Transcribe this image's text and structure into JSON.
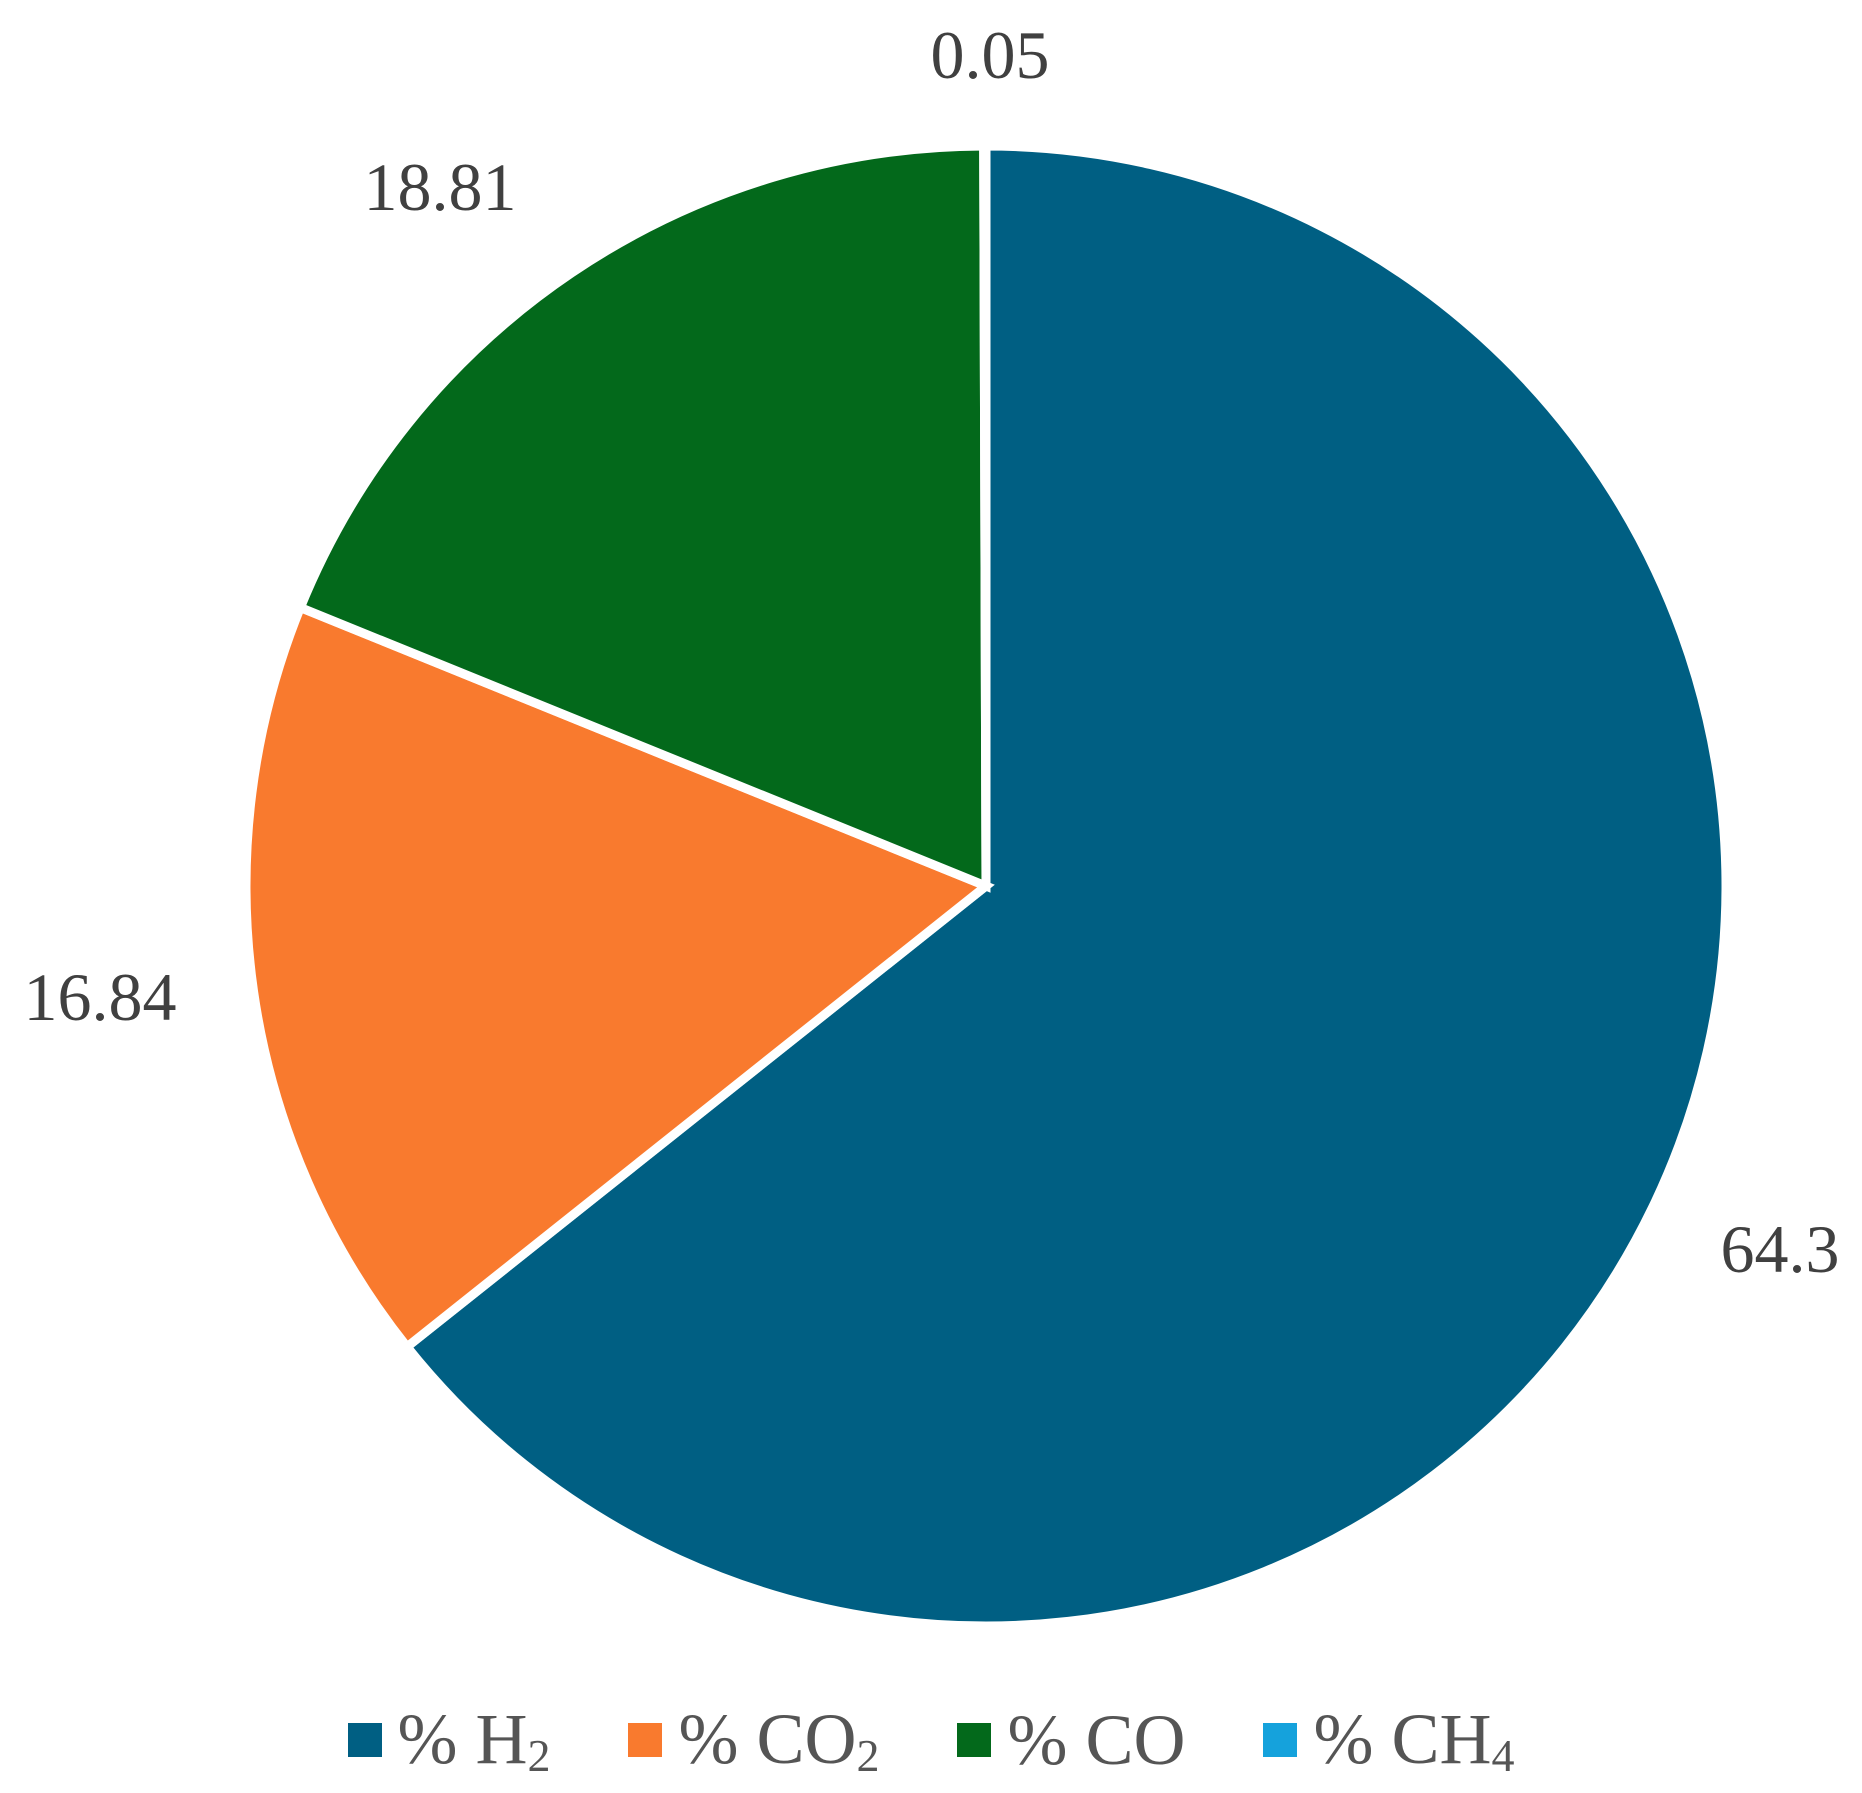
{
  "chart_data": {
    "type": "pie",
    "title": "",
    "series": [
      {
        "values": [
          64.3,
          16.84,
          18.81,
          0.05
        ]
      }
    ],
    "categories": [
      "% H₂",
      "% CO₂",
      "% CO",
      "% CH₄"
    ],
    "slices": [
      {
        "label_prefix": "% H",
        "label_subscript": "2",
        "value": 64.3,
        "color": "#005f83"
      },
      {
        "label_prefix": "% CO",
        "label_subscript": "2",
        "value": 16.84,
        "color": "#f97a2e"
      },
      {
        "label_prefix": "% CO",
        "label_subscript": "",
        "value": 18.81,
        "color": "#03691b"
      },
      {
        "label_prefix": "% CH",
        "label_subscript": "4",
        "value": 0.05,
        "color": "#15a2dc"
      }
    ],
    "data_labels": [
      "64.3",
      "16.84",
      "18.81",
      "0.05"
    ],
    "legend_position": "bottom",
    "start_angle": "12 o'clock",
    "direction": "clockwise"
  }
}
